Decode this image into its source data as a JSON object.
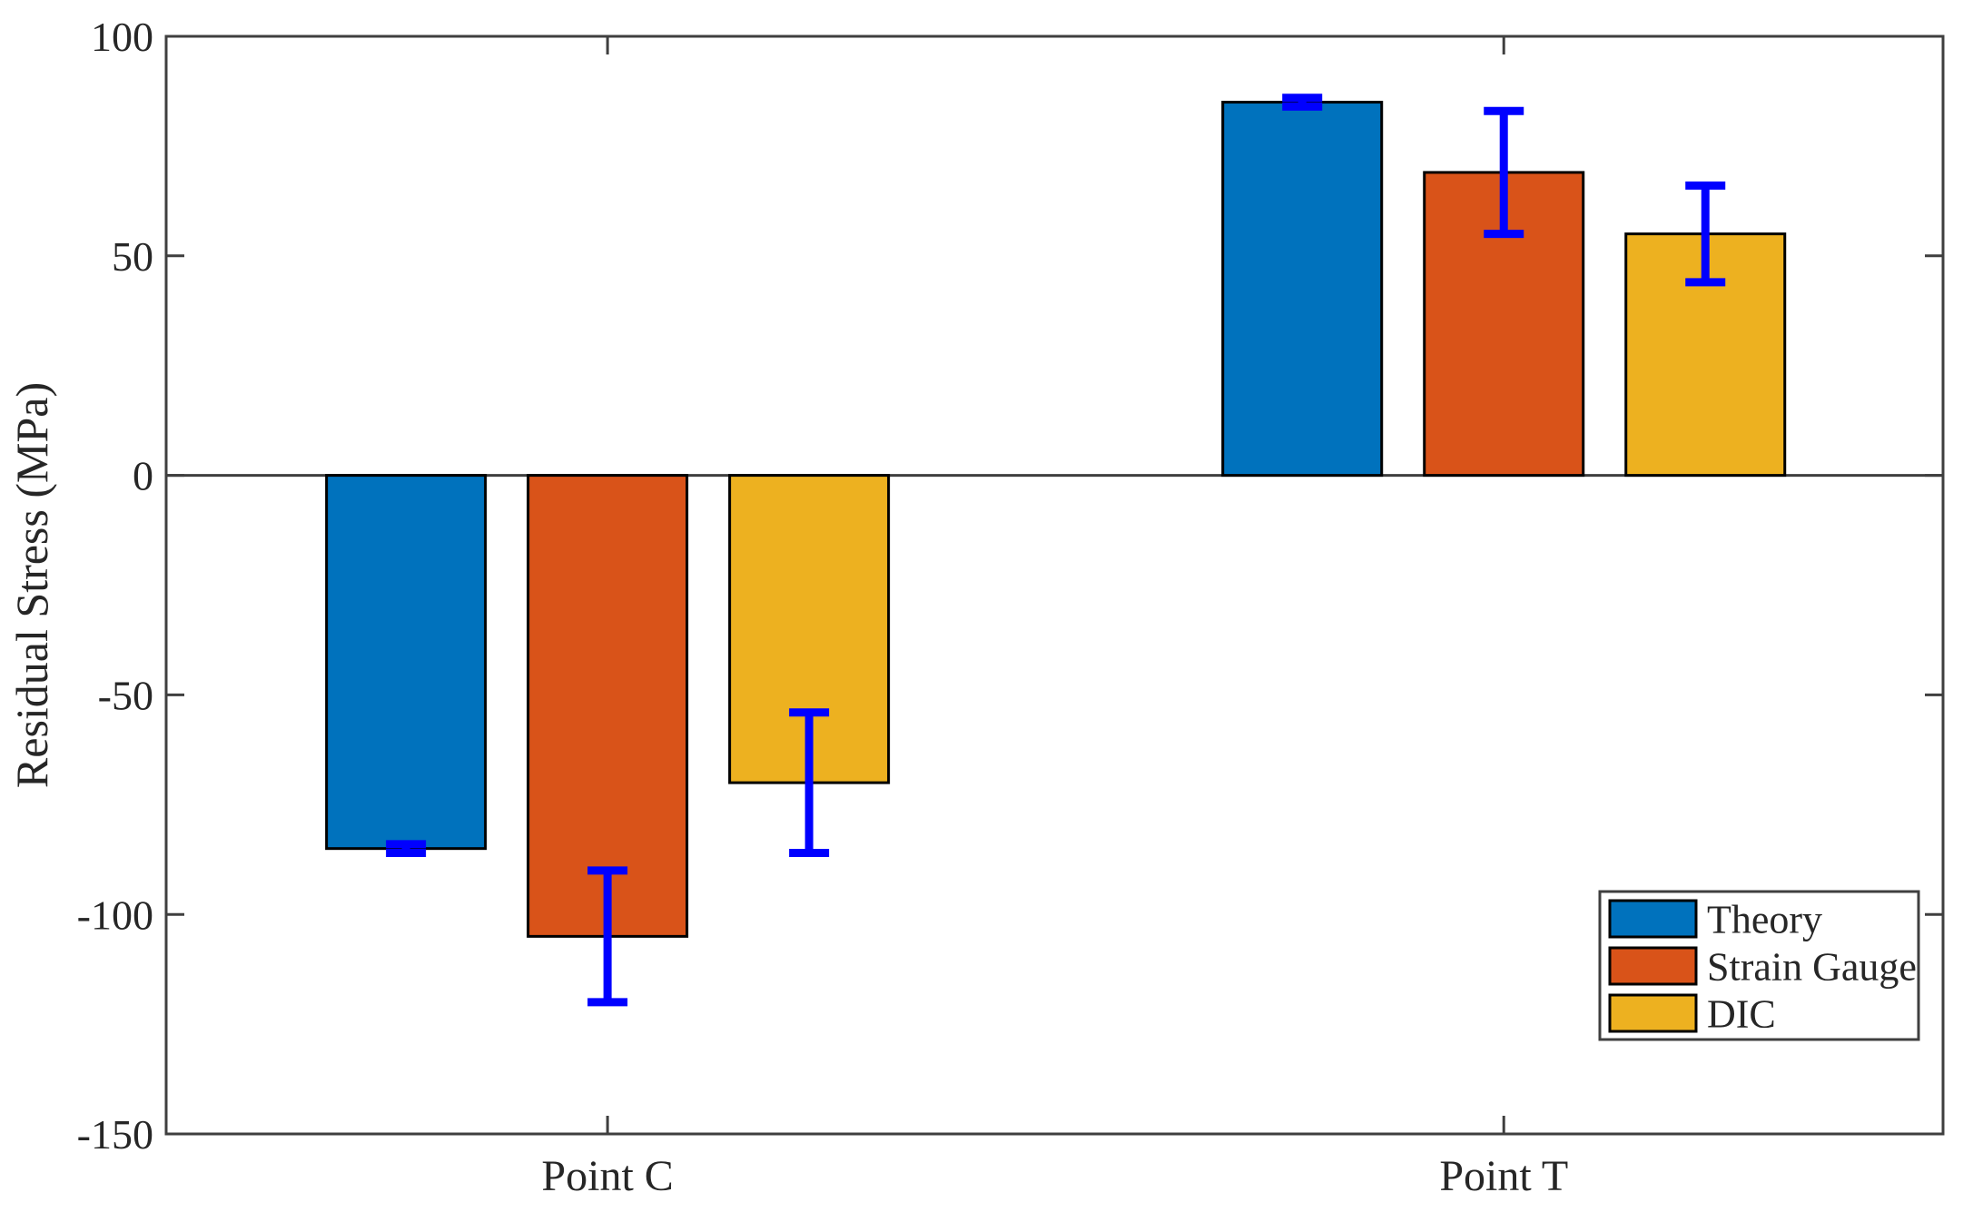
{
  "figure": {
    "background": "#ffffff"
  },
  "chart_data": {
    "type": "bar",
    "title": "",
    "xlabel": "",
    "ylabel": "Residual Stress (MPa)",
    "categories": [
      "Point C",
      "Point T"
    ],
    "series": [
      {
        "name": "Theory",
        "color": "#0072BD",
        "values": [
          -85,
          85
        ],
        "errors": [
          1,
          1
        ]
      },
      {
        "name": "Strain Gauge",
        "color": "#D95319",
        "values": [
          -105,
          69
        ],
        "errors": [
          15,
          14
        ]
      },
      {
        "name": "DIC",
        "color": "#EDB120",
        "values": [
          -70,
          55
        ],
        "errors": [
          16,
          11
        ]
      }
    ],
    "ylim": [
      -150,
      100
    ],
    "yticks": [
      -150,
      -100,
      -50,
      0,
      50,
      100
    ],
    "grid": false,
    "legend": {
      "position": "lower-right",
      "entries": [
        "Theory",
        "Strain Gauge",
        "DIC"
      ]
    },
    "error_bar_color": "#0000FF",
    "bar_edge_color": "#000000",
    "axis_color": "#3f3f3f",
    "text_color": "#262626",
    "zero_line": 0
  }
}
